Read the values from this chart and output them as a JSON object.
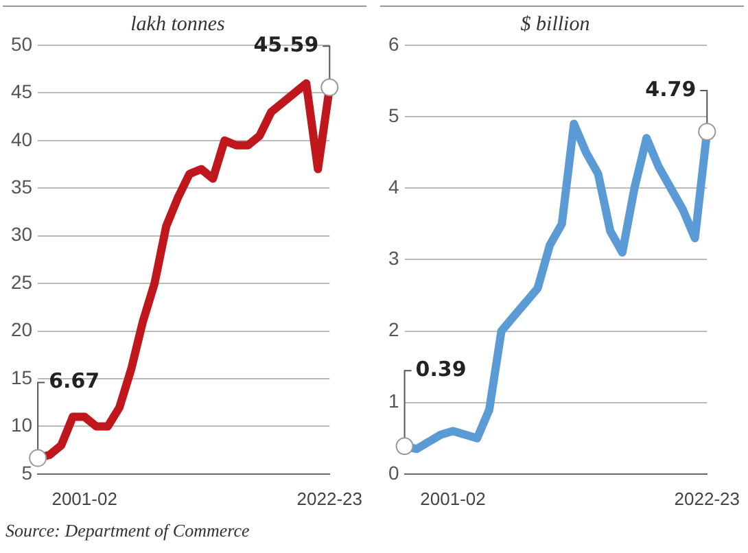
{
  "chart_data": [
    {
      "type": "line",
      "title": "lakh tonnes",
      "categories": [
        null,
        null,
        null,
        null,
        "2001-02",
        null,
        null,
        null,
        null,
        null,
        null,
        null,
        null,
        null,
        null,
        null,
        null,
        null,
        null,
        null,
        null,
        null,
        null,
        null,
        null,
        "2022-23"
      ],
      "series": [
        {
          "color": "#c0171c",
          "values": [
            6.67,
            7,
            8,
            11,
            11,
            10,
            10,
            12,
            16,
            21,
            25,
            31,
            34,
            36.5,
            37,
            36,
            40,
            39.5,
            39.5,
            40.5,
            43,
            44,
            45,
            46,
            37,
            45.59
          ],
          "value_labels": [
            "6.67",
            null,
            null,
            null,
            null,
            null,
            null,
            null,
            null,
            null,
            null,
            null,
            null,
            null,
            null,
            null,
            null,
            null,
            null,
            null,
            null,
            null,
            null,
            null,
            null,
            "45.59"
          ]
        }
      ],
      "ylim": [
        5,
        50
      ],
      "yticks": [
        5,
        10,
        15,
        20,
        25,
        30,
        35,
        40,
        45,
        50
      ],
      "grid": "y",
      "marker": "none",
      "legend": false,
      "annotations": [
        "Source: Department of Commerce"
      ]
    },
    {
      "type": "line",
      "title": "$ billion",
      "categories": [
        null,
        null,
        null,
        null,
        "2001-02",
        null,
        null,
        null,
        null,
        null,
        null,
        null,
        null,
        null,
        null,
        null,
        null,
        null,
        null,
        null,
        null,
        null,
        null,
        null,
        null,
        "2022-23"
      ],
      "series": [
        {
          "color": "#5b9bd5",
          "values": [
            0.39,
            0.35,
            0.45,
            0.55,
            0.6,
            0.55,
            0.5,
            0.9,
            2.0,
            2.2,
            2.4,
            2.6,
            3.2,
            3.5,
            4.9,
            4.5,
            4.2,
            3.4,
            3.1,
            4.0,
            4.7,
            4.3,
            4.0,
            3.7,
            3.3,
            4.79
          ],
          "value_labels": [
            "0.39",
            null,
            null,
            null,
            null,
            null,
            null,
            null,
            null,
            null,
            null,
            null,
            null,
            null,
            null,
            null,
            null,
            null,
            null,
            null,
            null,
            null,
            null,
            null,
            null,
            "4.79"
          ]
        }
      ],
      "ylim": [
        0,
        6
      ],
      "yticks": [
        0,
        1,
        2,
        3,
        4,
        5,
        6
      ],
      "grid": "y",
      "marker": "none",
      "legend": false
    }
  ]
}
